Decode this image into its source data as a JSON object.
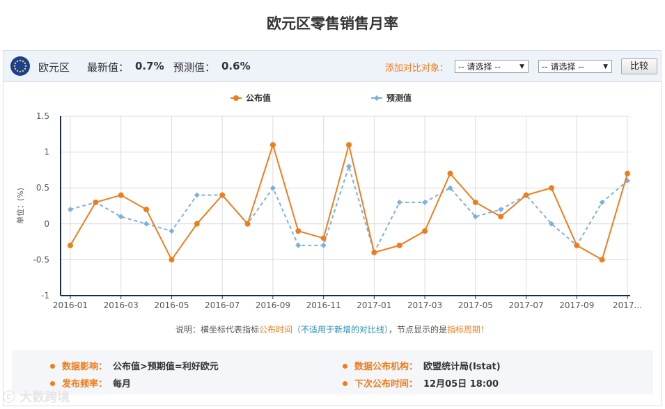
{
  "page_title": "欧元区零售销售月率",
  "info_bar": {
    "region": "欧元区",
    "latest_label": "最新值：",
    "latest_value": "0.7%",
    "forecast_label": "预测值：",
    "forecast_value": "0.6%",
    "compare_label": "添加对比对象：",
    "select_1": "-- 请选择 --",
    "select_2": "-- 请选择 --",
    "compare_button": "比较"
  },
  "chart_data": {
    "type": "line",
    "ylabel": "单位：(%)",
    "ylim": [
      -1,
      1.5
    ],
    "yticks": [
      "1.5",
      "1",
      "0.5",
      "0",
      "-0.5",
      "-1"
    ],
    "xtick_labels": [
      "2016-01",
      "2016-03",
      "2016-05",
      "2016-07",
      "2016-09",
      "2016-11",
      "2017-01",
      "2017-03",
      "2017-05",
      "2017-07",
      "2017-09",
      "2017..."
    ],
    "x": [
      "2016-01",
      "2016-02",
      "2016-03",
      "2016-04",
      "2016-05",
      "2016-06",
      "2016-07",
      "2016-08",
      "2016-09",
      "2016-10",
      "2016-11",
      "2016-12",
      "2017-01",
      "2017-02",
      "2017-03",
      "2017-04",
      "2017-05",
      "2017-06",
      "2017-07",
      "2017-08",
      "2017-09",
      "2017-10",
      "2017-11"
    ],
    "grid": true,
    "legend_position": "top",
    "series": [
      {
        "name": "公布值",
        "color": "#ee7d1c",
        "style": "solid",
        "values": [
          -0.3,
          0.3,
          0.4,
          0.2,
          -0.5,
          0.0,
          0.4,
          0.0,
          1.1,
          -0.1,
          -0.2,
          1.1,
          -0.4,
          -0.3,
          -0.1,
          0.7,
          0.3,
          0.1,
          0.4,
          0.5,
          -0.3,
          -0.5,
          0.7
        ]
      },
      {
        "name": "预测值",
        "color": "#7ab1de",
        "style": "dashed",
        "values": [
          0.2,
          0.3,
          0.1,
          0.0,
          -0.1,
          0.4,
          0.4,
          0.0,
          0.5,
          -0.3,
          -0.3,
          0.8,
          -0.4,
          0.3,
          0.3,
          0.5,
          0.1,
          0.2,
          0.4,
          0.0,
          -0.3,
          0.3,
          0.6
        ]
      }
    ]
  },
  "note": {
    "prefix": "说明：横坐标代表指标",
    "highlight1": "公布时间",
    "paren": "（不适用于新增的对比线）",
    "middle": "，节点显示的是",
    "highlight2": "指标周期",
    "suffix": "！"
  },
  "footer": {
    "impact_label": "数据影响：",
    "impact_value": "公布值>预期值=利好欧元",
    "agency_label": "数据公布机构：",
    "agency_value": "欧盟统计局(Istat)",
    "frequency_label": "发布频率：",
    "frequency_value": "每月",
    "next_label": "下次公布时间：",
    "next_value": "12月05日 18:00"
  },
  "watermark": "大数跨境"
}
